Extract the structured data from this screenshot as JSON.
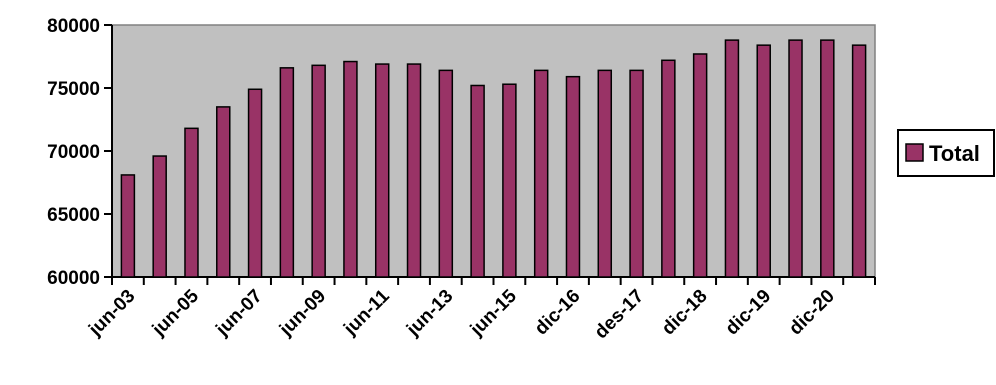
{
  "chart_data": {
    "type": "bar",
    "title": "",
    "xlabel": "",
    "ylabel": "",
    "ylim": [
      60000,
      80000
    ],
    "yticks": [
      60000,
      65000,
      70000,
      75000,
      80000
    ],
    "x_tick_labels": [
      "jun-03",
      "jun-05",
      "jun-07",
      "jun-09",
      "jun-11",
      "jun-13",
      "jun-15",
      "dic-16",
      "des-17",
      "dic-18",
      "dic-19",
      "dic-20"
    ],
    "grid": false,
    "legend_position": "right",
    "series": [
      {
        "name": "Total",
        "color": "#993366",
        "values": [
          68100,
          69600,
          71800,
          73500,
          74900,
          76600,
          76800,
          77100,
          76900,
          76900,
          76400,
          75200,
          75300,
          76400,
          75900,
          76400,
          76400,
          77200,
          77700,
          78800,
          78400,
          78800,
          78800,
          78400
        ]
      }
    ],
    "plot_background": "#c0c0c0",
    "bar_outline": "#000000"
  }
}
